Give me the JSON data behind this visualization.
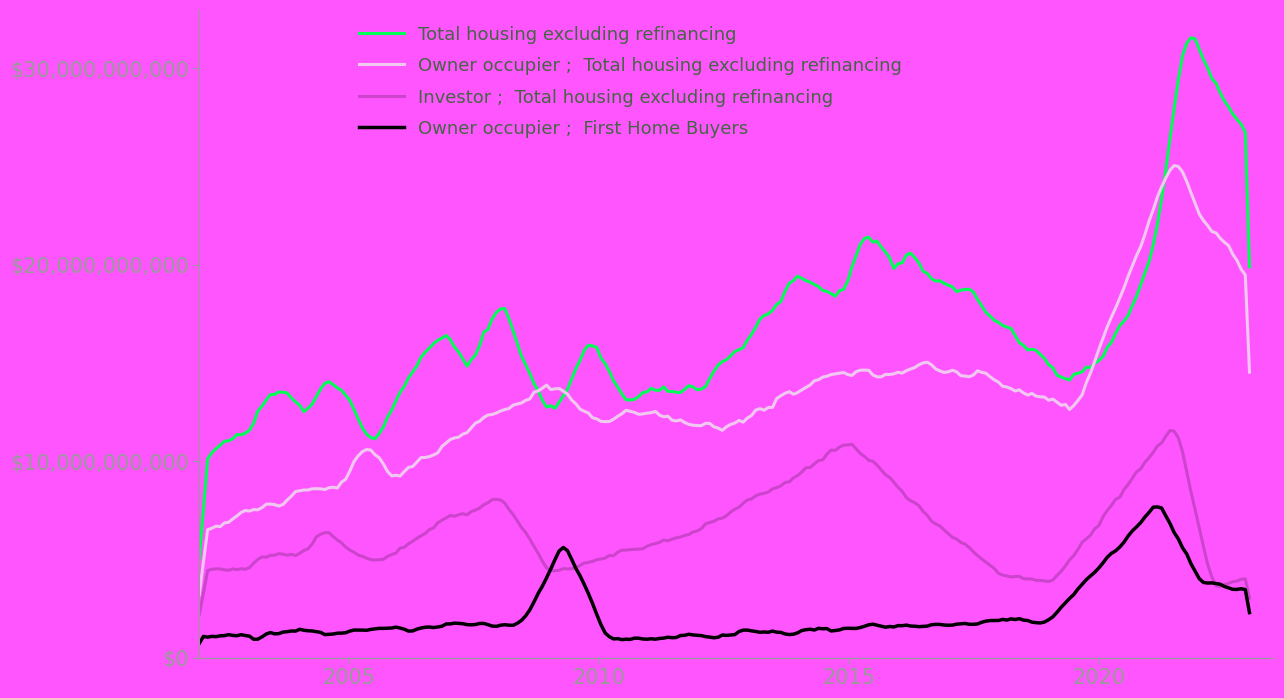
{
  "background_color": "#FF55FF",
  "title": "",
  "ylim": [
    0,
    33000000000
  ],
  "xlim": [
    2002.0,
    2023.5
  ],
  "ytick_labels": [
    "$0",
    "$10,000,000,000",
    "$20,000,000,000",
    "$30,000,000,000"
  ],
  "ytick_values": [
    0,
    10000000000,
    20000000000,
    30000000000
  ],
  "xtick_labels": [
    "2005",
    "2010",
    "2015",
    "2020"
  ],
  "xtick_values": [
    2005,
    2010,
    2015,
    2020
  ],
  "legend": [
    {
      "label": "Total housing excluding refinancing",
      "color": "#00FF55",
      "lw": 2.2
    },
    {
      "label": "Owner occupier ;  Total housing excluding refinancing",
      "color": "#F0C8F0",
      "lw": 2.2
    },
    {
      "label": "Investor ;  Total housing excluding refinancing",
      "color": "#CC44CC",
      "lw": 2.2
    },
    {
      "label": "Owner occupier ;  First Home Buyers",
      "color": "#000000",
      "lw": 2.5
    }
  ],
  "axis_color": "#888888",
  "tick_label_color": "#666655",
  "legend_text_color": "#446644",
  "legend_fontsize": 13,
  "tick_fontsize": 15
}
